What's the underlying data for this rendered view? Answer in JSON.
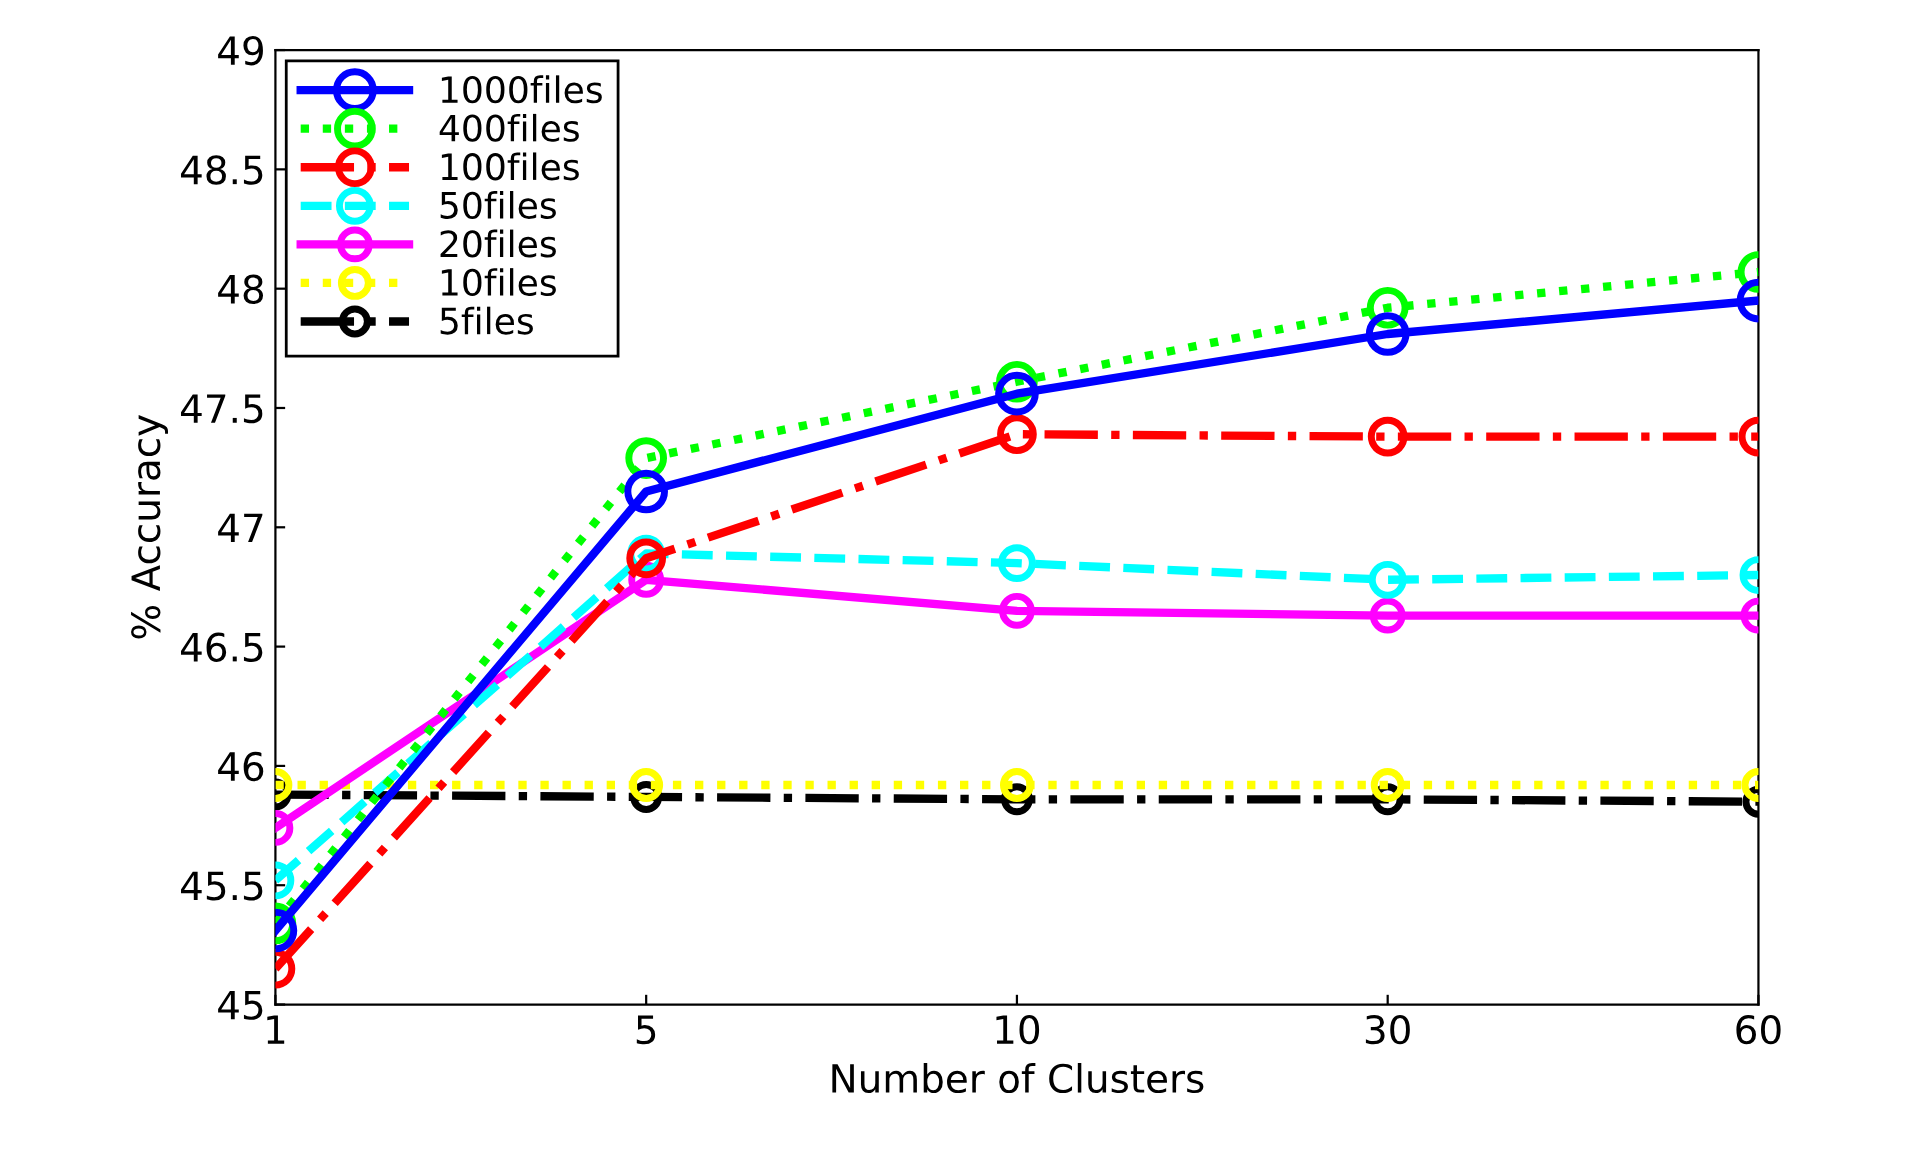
{
  "chart_data": {
    "type": "line",
    "xlabel": "Number of Clusters",
    "ylabel": "% Accuracy",
    "categories": [
      "1",
      "5",
      "10",
      "30",
      "60"
    ],
    "ylim": [
      45,
      49
    ],
    "yticks": [
      45,
      45.5,
      46,
      46.5,
      47,
      47.5,
      48,
      48.5,
      49
    ],
    "grid": false,
    "legend": "top left",
    "marker": "circle",
    "series": [
      {
        "name": "1000files",
        "color": "#0000ff",
        "line_style": "solid",
        "values": [
          45.31,
          47.15,
          47.56,
          47.81,
          47.95
        ]
      },
      {
        "name": "400files",
        "color": "#00ff00",
        "line_style": "dotted",
        "values": [
          45.34,
          47.29,
          47.61,
          47.92,
          48.07
        ]
      },
      {
        "name": "100files",
        "color": "#ff0000",
        "line_style": "dashdot",
        "values": [
          45.15,
          46.87,
          47.39,
          47.38,
          47.38
        ]
      },
      {
        "name": "50files",
        "color": "#00ffff",
        "line_style": "dashed",
        "values": [
          45.52,
          46.89,
          46.85,
          46.78,
          46.8
        ]
      },
      {
        "name": "20files",
        "color": "#ff00ff",
        "line_style": "solid",
        "values": [
          45.74,
          46.78,
          46.65,
          46.63,
          46.63
        ]
      },
      {
        "name": "10files",
        "color": "#ffff00",
        "line_style": "dotted",
        "values": [
          45.92,
          45.92,
          45.92,
          45.92,
          45.92
        ]
      },
      {
        "name": "5files",
        "color": "#000000",
        "line_style": "dashdot",
        "values": [
          45.88,
          45.87,
          45.86,
          45.86,
          45.85
        ]
      }
    ]
  }
}
